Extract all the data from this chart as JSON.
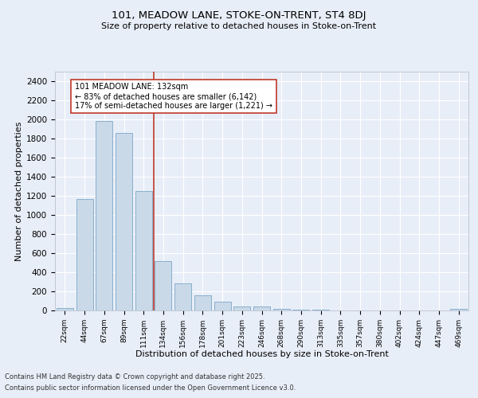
{
  "title_line1": "101, MEADOW LANE, STOKE-ON-TRENT, ST4 8DJ",
  "title_line2": "Size of property relative to detached houses in Stoke-on-Trent",
  "xlabel": "Distribution of detached houses by size in Stoke-on-Trent",
  "ylabel": "Number of detached properties",
  "bin_labels": [
    "22sqm",
    "44sqm",
    "67sqm",
    "89sqm",
    "111sqm",
    "134sqm",
    "156sqm",
    "178sqm",
    "201sqm",
    "223sqm",
    "246sqm",
    "268sqm",
    "290sqm",
    "313sqm",
    "335sqm",
    "357sqm",
    "380sqm",
    "402sqm",
    "424sqm",
    "447sqm",
    "469sqm"
  ],
  "bar_values": [
    25,
    1170,
    1980,
    1860,
    1250,
    520,
    280,
    155,
    90,
    45,
    42,
    18,
    12,
    5,
    3,
    2,
    2,
    1,
    1,
    1,
    20
  ],
  "bar_color": "#c9d9e8",
  "bar_edge_color": "#6a9abf",
  "vline_color": "#c0392b",
  "annotation_box_color": "#ffffff",
  "annotation_box_edge": "#c0392b",
  "ylim": [
    0,
    2500
  ],
  "yticks": [
    0,
    200,
    400,
    600,
    800,
    1000,
    1200,
    1400,
    1600,
    1800,
    2000,
    2200,
    2400
  ],
  "background_color": "#e8eef8",
  "plot_bg_color": "#e8eef8",
  "footer_line1": "Contains HM Land Registry data © Crown copyright and database right 2025.",
  "footer_line2": "Contains public sector information licensed under the Open Government Licence v3.0.",
  "annotation_line1": "101 MEADOW LANE: 132sqm",
  "annotation_line2": "← 83% of detached houses are smaller (6,142)",
  "annotation_line3": "17% of semi-detached houses are larger (1,221) →"
}
